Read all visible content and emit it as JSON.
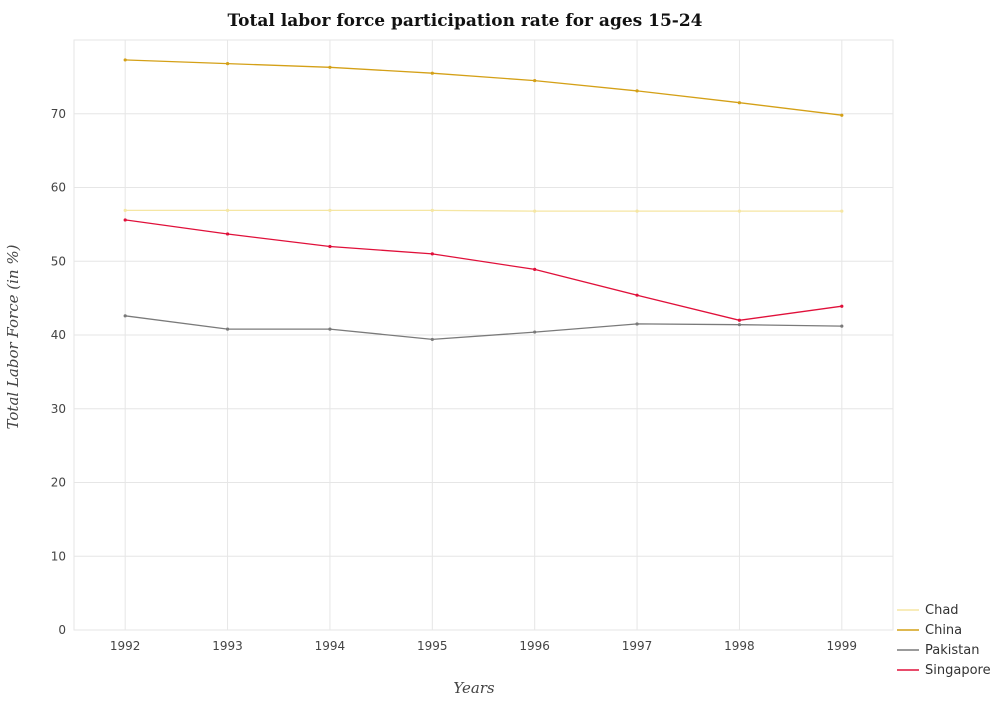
{
  "chart_data": {
    "type": "line",
    "title": "Total labor force participation rate for ages 15-24",
    "xlabel": "Years",
    "ylabel": "Total Labor Force (in %)",
    "categories": [
      "1992",
      "1993",
      "1994",
      "1995",
      "1996",
      "1997",
      "1998",
      "1999"
    ],
    "ylim": [
      0,
      80
    ],
    "yticks": [
      0,
      10,
      20,
      30,
      40,
      50,
      60,
      70
    ],
    "grid": true,
    "legend_position": "bottom-right",
    "series": [
      {
        "name": "Chad",
        "color": "#f5e6a3",
        "values": [
          56.9,
          56.9,
          56.9,
          56.9,
          56.8,
          56.8,
          56.8,
          56.8
        ]
      },
      {
        "name": "China",
        "color": "#d4a017",
        "values": [
          77.3,
          76.8,
          76.3,
          75.5,
          74.5,
          73.1,
          71.5,
          69.8
        ]
      },
      {
        "name": "Pakistan",
        "color": "#7a7a7a",
        "values": [
          42.6,
          40.8,
          40.8,
          39.4,
          40.4,
          41.5,
          41.4,
          41.2
        ]
      },
      {
        "name": "Singapore",
        "color": "#e0103a",
        "values": [
          55.6,
          53.7,
          52.0,
          51.0,
          48.9,
          45.4,
          42.0,
          43.9
        ]
      }
    ]
  }
}
